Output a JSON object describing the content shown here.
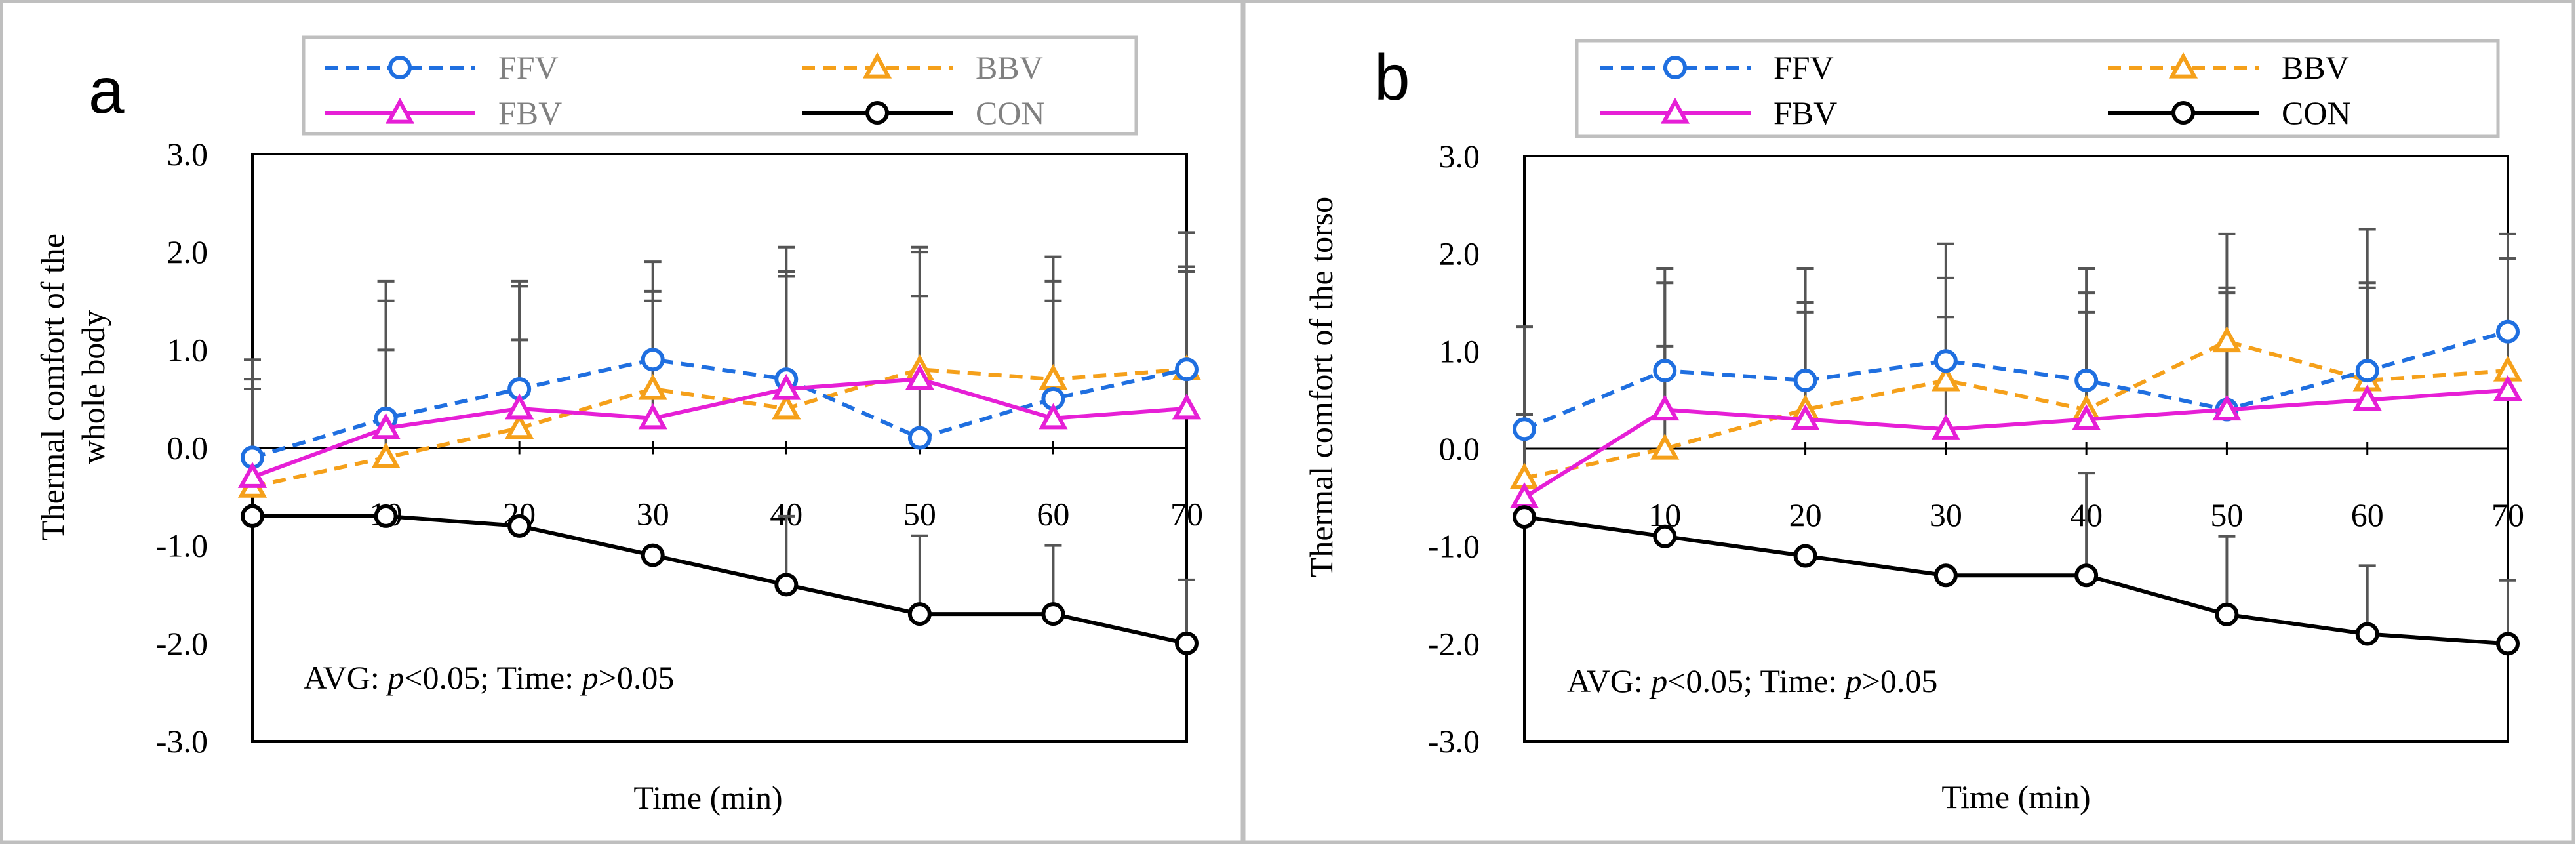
{
  "chart_data": [
    {
      "type": "line",
      "panel_label": "a",
      "ylabel_lines": [
        "Thermal comfort of the",
        "whole body"
      ],
      "xlabel": "Time (min)",
      "x": [
        0,
        10,
        20,
        30,
        40,
        50,
        60,
        70
      ],
      "x_tick_labels": [
        "0",
        "10",
        "20",
        "30",
        "40",
        "50",
        "60",
        "70"
      ],
      "ylim": [
        -3.0,
        3.0
      ],
      "y_tick_labels": [
        "3.0",
        "2.0",
        "1.0",
        "0.0",
        "-1.0",
        "-2.0",
        "-3.0"
      ],
      "annotation": {
        "avg_label": "AVG: ",
        "p": "p",
        "avg_value": "<0.05; Time: ",
        "time_value": ">0.05"
      },
      "legend_position": "top",
      "series": [
        {
          "name": "FFV",
          "color": "#1f6fe0",
          "dash": true,
          "marker": "circle",
          "values": [
            -0.1,
            0.3,
            0.6,
            0.9,
            0.7,
            0.1,
            0.5,
            0.8
          ],
          "err_upper": [
            0.7,
            1.7,
            1.7,
            1.9,
            2.05,
            2.05,
            1.95,
            2.2
          ]
        },
        {
          "name": "BBV",
          "color": "#f5a01a",
          "dash": true,
          "marker": "triangle",
          "values": [
            -0.4,
            -0.1,
            0.2,
            0.6,
            0.4,
            0.8,
            0.7,
            0.8
          ],
          "err_upper": [
            0.9,
            1.0,
            1.1,
            1.6,
            1.8,
            2.0,
            1.7,
            1.85
          ]
        },
        {
          "name": "FBV",
          "color": "#e61fd6",
          "dash": false,
          "marker": "triangle",
          "values": [
            -0.3,
            0.2,
            0.4,
            0.3,
            0.6,
            0.7,
            0.3,
            0.4
          ],
          "err_upper": [
            0.6,
            1.5,
            1.65,
            1.5,
            1.75,
            1.55,
            1.5,
            1.8
          ]
        },
        {
          "name": "CON",
          "color": "#000000",
          "dash": false,
          "marker": "circle",
          "values": [
            -0.7,
            -0.7,
            -0.8,
            -1.1,
            -1.4,
            -1.7,
            -1.7,
            -2.0
          ],
          "err_upper": [
            null,
            null,
            null,
            null,
            -0.7,
            -0.9,
            -1.0,
            -1.35
          ]
        }
      ]
    },
    {
      "type": "line",
      "panel_label": "b",
      "ylabel_lines": [
        "Thermal comfort of the torso"
      ],
      "xlabel": "Time (min)",
      "x": [
        0,
        10,
        20,
        30,
        40,
        50,
        60,
        70
      ],
      "x_tick_labels": [
        "0",
        "10",
        "20",
        "30",
        "40",
        "50",
        "60",
        "70"
      ],
      "ylim": [
        -3.0,
        3.0
      ],
      "y_tick_labels": [
        "3.0",
        "2.0",
        "1.0",
        "0.0",
        "-1.0",
        "-2.0",
        "-3.0"
      ],
      "annotation": {
        "avg_label": "AVG: ",
        "p": "p",
        "avg_value": "<0.05; Time: ",
        "time_value": ">0.05"
      },
      "legend_position": "top",
      "series": [
        {
          "name": "FFV",
          "color": "#1f6fe0",
          "dash": true,
          "marker": "circle",
          "values": [
            0.2,
            0.8,
            0.7,
            0.9,
            0.7,
            0.4,
            0.8,
            1.2
          ],
          "err_upper": [
            1.25,
            1.85,
            1.85,
            2.1,
            1.85,
            1.65,
            2.25,
            2.2
          ]
        },
        {
          "name": "BBV",
          "color": "#f5a01a",
          "dash": true,
          "marker": "triangle",
          "values": [
            -0.3,
            0.0,
            0.4,
            0.7,
            0.4,
            1.1,
            0.7,
            0.8
          ],
          "err_upper": [
            0.35,
            1.05,
            1.5,
            1.75,
            1.6,
            2.2,
            1.7,
            1.95
          ]
        },
        {
          "name": "FBV",
          "color": "#e61fd6",
          "dash": false,
          "marker": "triangle",
          "values": [
            -0.5,
            0.4,
            0.3,
            0.2,
            0.3,
            0.4,
            0.5,
            0.6
          ],
          "err_upper": [
            null,
            1.7,
            1.4,
            1.35,
            1.4,
            1.6,
            1.65,
            1.95
          ]
        },
        {
          "name": "CON",
          "color": "#000000",
          "dash": false,
          "marker": "circle",
          "values": [
            -0.7,
            -0.9,
            -1.1,
            -1.3,
            -1.3,
            -1.7,
            -1.9,
            -2.0
          ],
          "err_upper": [
            null,
            null,
            null,
            null,
            -0.25,
            -0.9,
            -1.2,
            -1.35
          ]
        }
      ]
    }
  ]
}
